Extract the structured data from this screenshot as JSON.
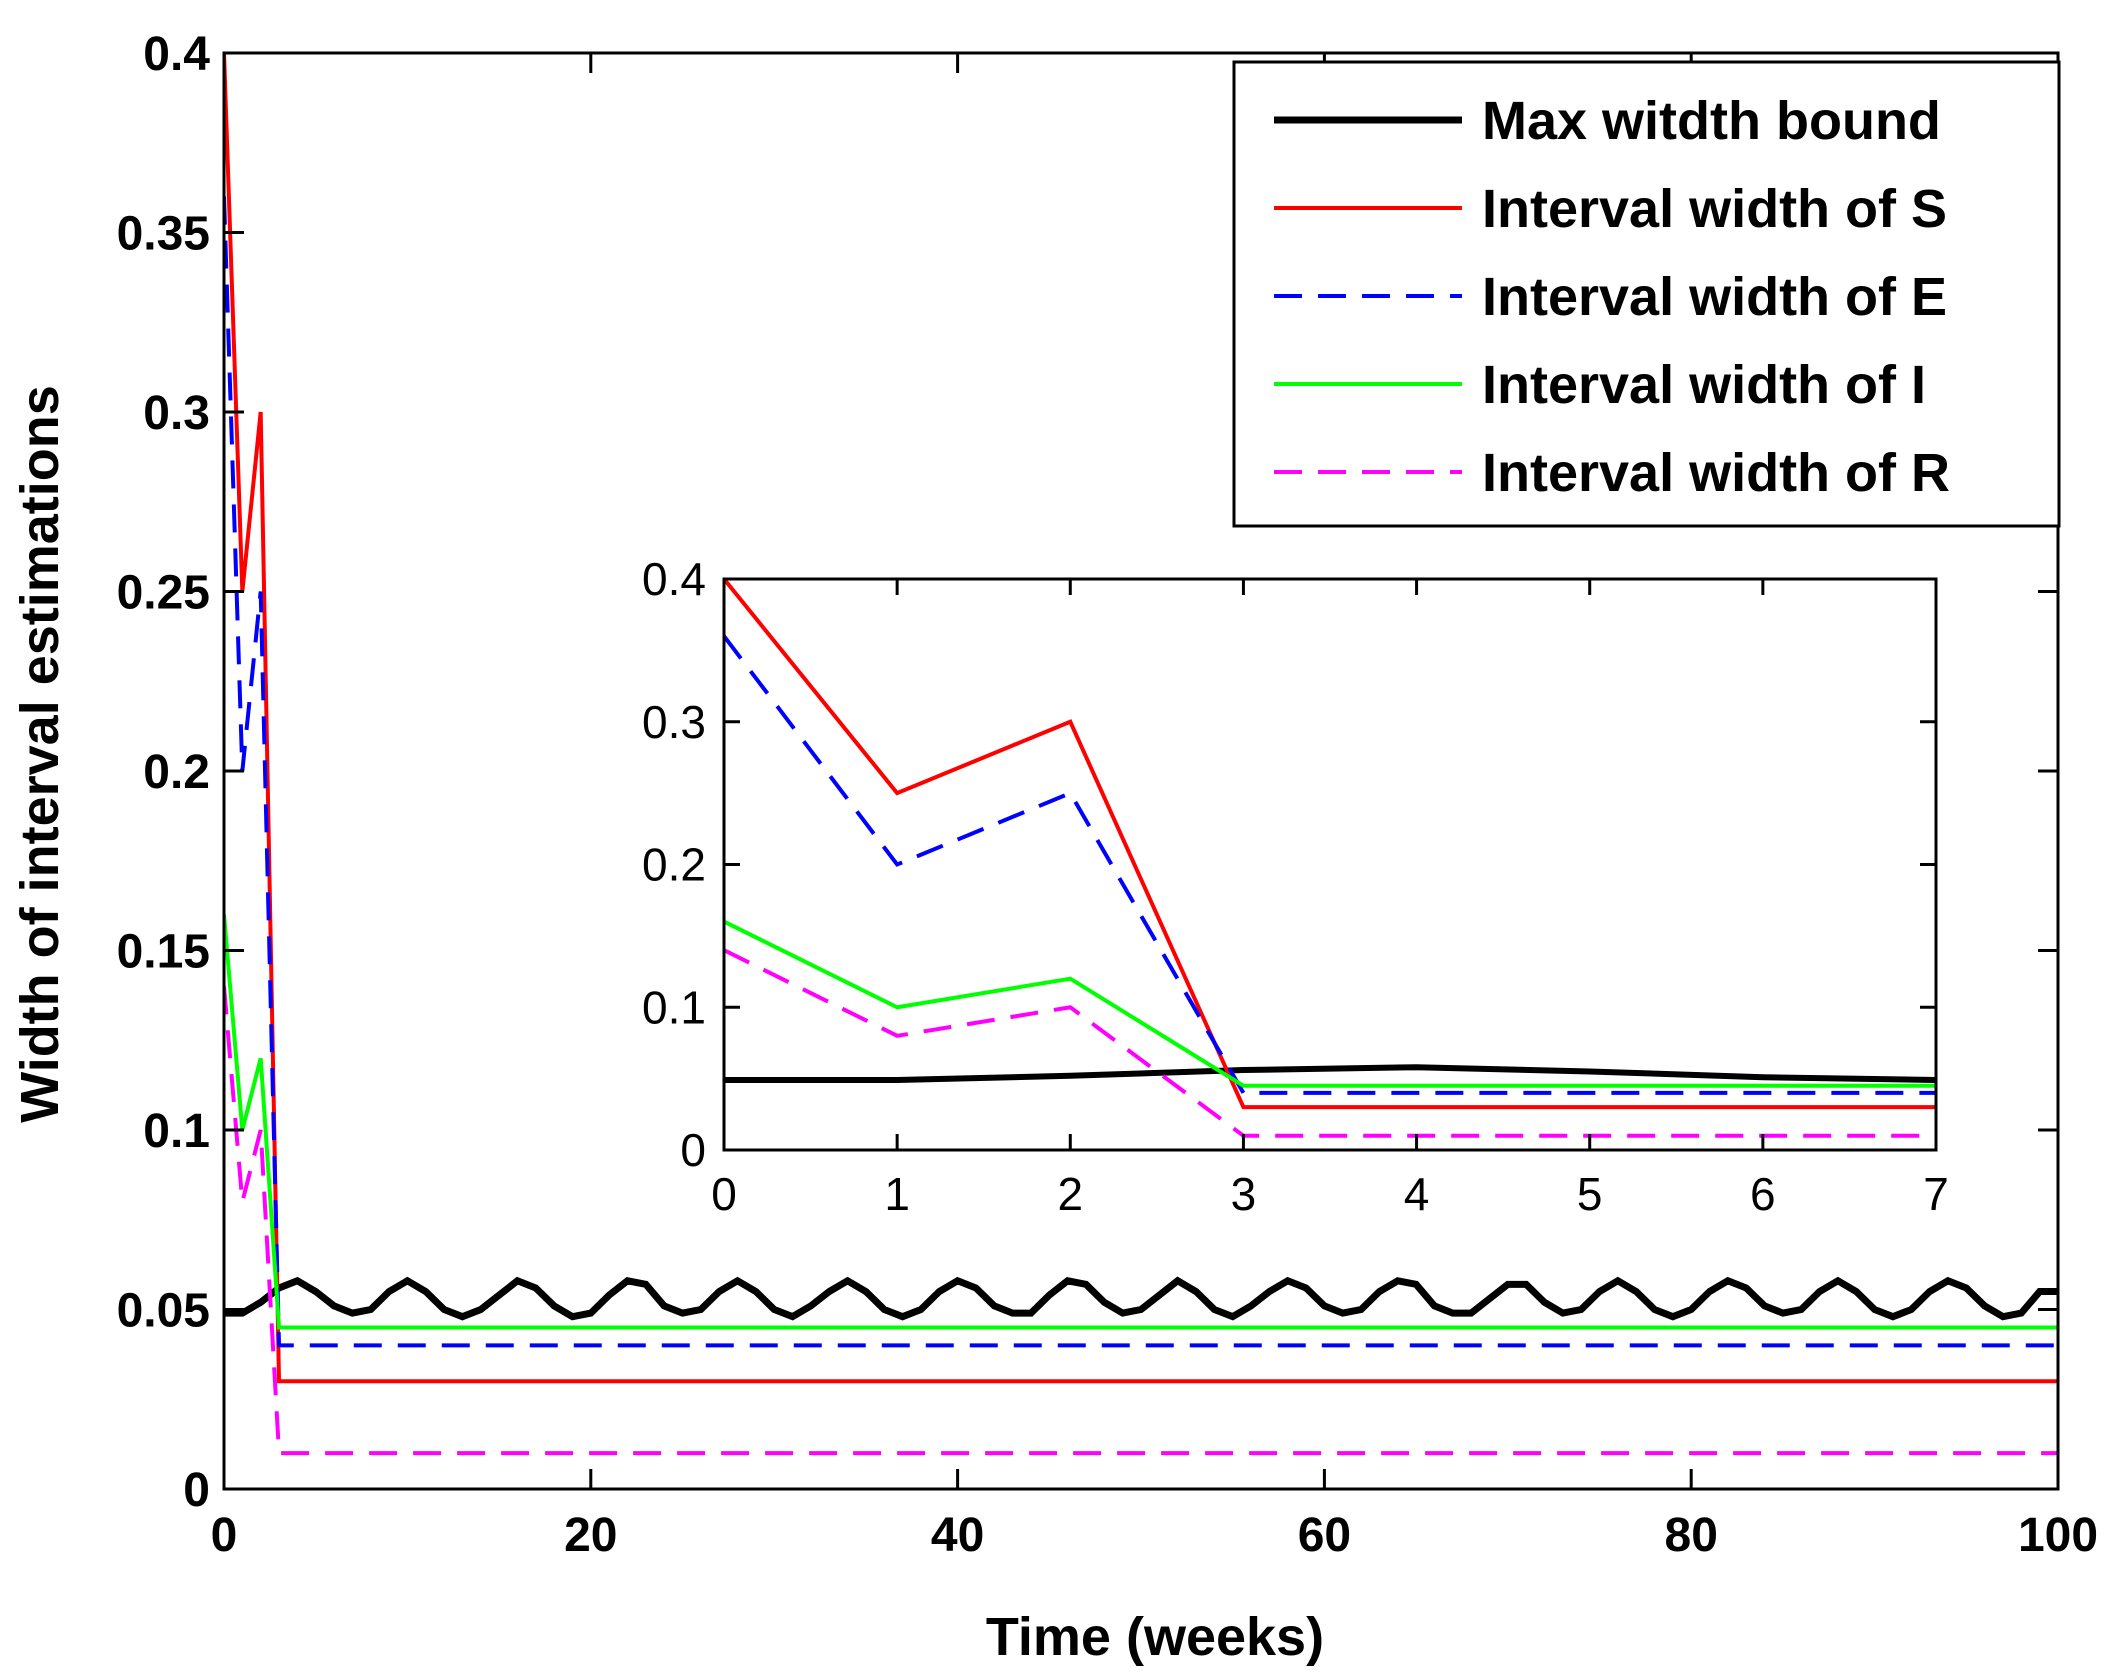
{
  "chart_data": [
    {
      "type": "line",
      "title": "",
      "xlabel": "Time (weeks)",
      "ylabel": "Width of interval estimations",
      "xlim": [
        0,
        100
      ],
      "ylim": [
        0,
        0.4
      ],
      "xticks": [
        "0",
        "20",
        "40",
        "60",
        "80",
        "100"
      ],
      "yticks": [
        "0",
        "0.05",
        "0.1",
        "0.15",
        "0.2",
        "0.25",
        "0.3",
        "0.35",
        "0.4"
      ],
      "legend_position": "top-right",
      "grid": false,
      "series": [
        {
          "name": "Max witdth bound",
          "color": "#000000",
          "style": "solid",
          "x": [
            0,
            1,
            2,
            3,
            4,
            5,
            6,
            7,
            8,
            9,
            10,
            11,
            12,
            13,
            14,
            15,
            16,
            17,
            18,
            19,
            20,
            21,
            22,
            23,
            24,
            25,
            26,
            27,
            28,
            29,
            30,
            31,
            32,
            33,
            34,
            35,
            36,
            37,
            38,
            39,
            40,
            41,
            42,
            43,
            44,
            45,
            46,
            47,
            48,
            49,
            50,
            51,
            52,
            53,
            54,
            55,
            56,
            57,
            58,
            59,
            60,
            61,
            62,
            63,
            64,
            65,
            66,
            67,
            68,
            69,
            70,
            71,
            72,
            73,
            74,
            75,
            76,
            77,
            78,
            79,
            80,
            81,
            82,
            83,
            84,
            85,
            86,
            87,
            88,
            89,
            90,
            91,
            92,
            93,
            94,
            95,
            96,
            97,
            98,
            99,
            100
          ],
          "values": [
            0.049,
            0.049,
            0.052,
            0.056,
            0.058,
            0.055,
            0.051,
            0.049,
            0.05,
            0.055,
            0.058,
            0.055,
            0.05,
            0.048,
            0.05,
            0.054,
            0.058,
            0.056,
            0.051,
            0.048,
            0.049,
            0.054,
            0.058,
            0.057,
            0.051,
            0.049,
            0.05,
            0.055,
            0.058,
            0.055,
            0.05,
            0.048,
            0.051,
            0.055,
            0.058,
            0.055,
            0.05,
            0.048,
            0.05,
            0.055,
            0.058,
            0.056,
            0.051,
            0.049,
            0.049,
            0.054,
            0.058,
            0.057,
            0.052,
            0.049,
            0.05,
            0.054,
            0.058,
            0.055,
            0.05,
            0.048,
            0.051,
            0.055,
            0.058,
            0.056,
            0.051,
            0.049,
            0.05,
            0.055,
            0.058,
            0.057,
            0.051,
            0.049,
            0.049,
            0.053,
            0.057,
            0.057,
            0.052,
            0.049,
            0.05,
            0.055,
            0.058,
            0.055,
            0.05,
            0.048,
            0.05,
            0.055,
            0.058,
            0.056,
            0.051,
            0.049,
            0.05,
            0.055,
            0.058,
            0.055,
            0.05,
            0.048,
            0.05,
            0.055,
            0.058,
            0.056,
            0.051,
            0.048,
            0.049,
            0.055,
            0.055
          ]
        },
        {
          "name": "Interval width of S",
          "color": "#ff0000",
          "style": "solid",
          "x": [
            0,
            1,
            2,
            3,
            100
          ],
          "values": [
            0.4,
            0.25,
            0.3,
            0.03,
            0.03
          ]
        },
        {
          "name": "Interval width of E",
          "color": "#0000ff",
          "style": "dashed",
          "x": [
            0,
            1,
            2,
            3,
            100
          ],
          "values": [
            0.36,
            0.2,
            0.25,
            0.04,
            0.04
          ]
        },
        {
          "name": "Interval width of I",
          "color": "#00ff00",
          "style": "solid",
          "x": [
            0,
            1,
            2,
            3,
            100
          ],
          "values": [
            0.16,
            0.1,
            0.12,
            0.045,
            0.045
          ]
        },
        {
          "name": "Interval width of R",
          "color": "#ff00ff",
          "style": "dashed",
          "x": [
            0,
            1,
            2,
            3,
            100
          ],
          "values": [
            0.14,
            0.08,
            0.1,
            0.01,
            0.01
          ]
        }
      ]
    },
    {
      "type": "line",
      "title": "",
      "xlabel": "",
      "ylabel": "",
      "xlim": [
        0,
        7
      ],
      "ylim": [
        0,
        0.4
      ],
      "xticks": [
        "0",
        "1",
        "2",
        "3",
        "4",
        "5",
        "6",
        "7"
      ],
      "yticks": [
        "0",
        "0.1",
        "0.2",
        "0.3",
        "0.4"
      ],
      "grid": false,
      "series": [
        {
          "color": "#000000",
          "style": "solid",
          "x": [
            0,
            1,
            2,
            3,
            4,
            5,
            6,
            7
          ],
          "values": [
            0.049,
            0.049,
            0.052,
            0.056,
            0.058,
            0.055,
            0.051,
            0.049
          ]
        },
        {
          "color": "#ff0000",
          "style": "solid",
          "x": [
            0,
            1,
            2,
            3,
            7
          ],
          "values": [
            0.4,
            0.25,
            0.3,
            0.03,
            0.03
          ]
        },
        {
          "color": "#0000ff",
          "style": "dashed",
          "x": [
            0,
            1,
            2,
            3,
            7
          ],
          "values": [
            0.36,
            0.2,
            0.25,
            0.04,
            0.04
          ]
        },
        {
          "color": "#00ff00",
          "style": "solid",
          "x": [
            0,
            1,
            2,
            3,
            7
          ],
          "values": [
            0.16,
            0.1,
            0.12,
            0.045,
            0.045
          ]
        },
        {
          "color": "#ff00ff",
          "style": "dashed",
          "x": [
            0,
            1,
            2,
            3,
            7
          ],
          "values": [
            0.14,
            0.08,
            0.1,
            0.01,
            0.01
          ]
        }
      ]
    }
  ]
}
